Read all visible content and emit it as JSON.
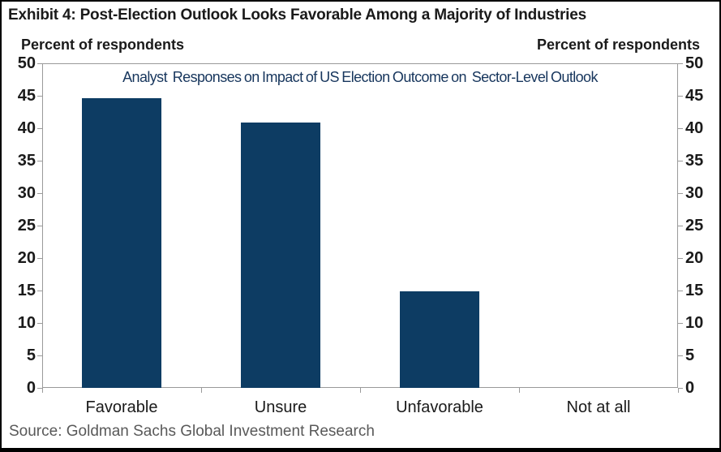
{
  "exhibit_title": "Exhibit 4: Post-Election Outlook Looks Favorable Among a Majority of Industries",
  "source": "Source: Goldman Sachs Global Investment Research",
  "colors": {
    "bar": "#0d3c63",
    "subtitle": "#17365d",
    "axis": "#9a9a9a",
    "source_text": "#595959",
    "text": "#1a1a1a",
    "frame": "#000000"
  },
  "chart_data": {
    "type": "bar",
    "title": "Analyst  Responses on Impact of US Election Outcome on  Sector-Level Outlook",
    "categories": [
      "Favorable",
      "Unsure",
      "Unfavorable",
      "Not at all"
    ],
    "values": [
      44.6,
      40.9,
      14.9,
      0
    ],
    "ylabel_left": "Percent of respondents",
    "ylabel_right": "Percent of respondents",
    "ylim": [
      0,
      50
    ],
    "yticks": [
      0,
      5,
      10,
      15,
      20,
      25,
      30,
      35,
      40,
      45,
      50
    ],
    "grid": false,
    "legend": "none",
    "bar_width_fraction": 0.5
  }
}
